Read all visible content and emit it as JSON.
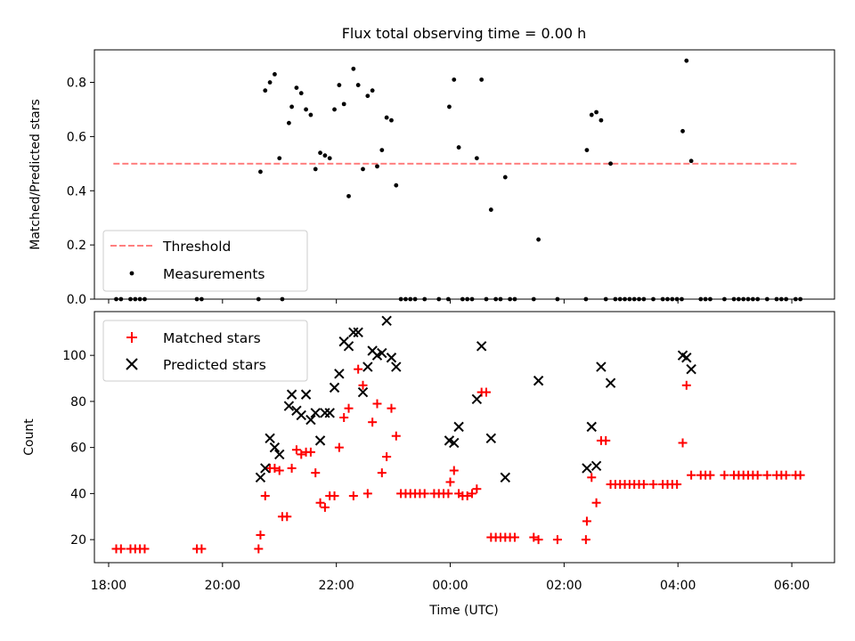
{
  "title": "Flux total observing time = 0.00 h",
  "chart_data": [
    {
      "type": "scatter",
      "ylabel": "Matched/Predicted stars",
      "xlim": [
        "17:45",
        "06:45"
      ],
      "ylim": [
        0,
        0.92
      ],
      "yticks": [
        0.0,
        0.2,
        0.4,
        0.6,
        0.8
      ],
      "yticklabels": [
        "0.0",
        "0.2",
        "0.4",
        "0.6",
        "0.8"
      ],
      "legend_location": "lower-left",
      "threshold": {
        "name": "Threshold",
        "y": 0.5,
        "x_start": "18:05",
        "x_end": "06:05",
        "color": "#ff7f7f",
        "style": "dashed"
      },
      "series": [
        {
          "name": "Measurements",
          "color": "#000000",
          "marker": "dot",
          "points": [
            [
              "18:08",
              0
            ],
            [
              "18:13",
              0
            ],
            [
              "18:23",
              0
            ],
            [
              "18:28",
              0
            ],
            [
              "18:33",
              0
            ],
            [
              "18:38",
              0
            ],
            [
              "19:33",
              0
            ],
            [
              "19:38",
              0
            ],
            [
              "20:38",
              0
            ],
            [
              "20:40",
              0.47
            ],
            [
              "20:45",
              0.77
            ],
            [
              "20:50",
              0.8
            ],
            [
              "20:55",
              0.83
            ],
            [
              "21:00",
              0.52
            ],
            [
              "21:03",
              0
            ],
            [
              "21:10",
              0.65
            ],
            [
              "21:13",
              0.71
            ],
            [
              "21:18",
              0.78
            ],
            [
              "21:23",
              0.76
            ],
            [
              "21:28",
              0.7
            ],
            [
              "21:33",
              0.68
            ],
            [
              "21:38",
              0.48
            ],
            [
              "21:43",
              0.54
            ],
            [
              "21:48",
              0.53
            ],
            [
              "21:53",
              0.52
            ],
            [
              "21:58",
              0.7
            ],
            [
              "22:03",
              0.79
            ],
            [
              "22:08",
              0.72
            ],
            [
              "22:13",
              0.38
            ],
            [
              "22:18",
              0.85
            ],
            [
              "22:23",
              0.79
            ],
            [
              "22:28",
              0.48
            ],
            [
              "22:33",
              0.75
            ],
            [
              "22:38",
              0.77
            ],
            [
              "22:43",
              0.49
            ],
            [
              "22:48",
              0.55
            ],
            [
              "22:53",
              0.67
            ],
            [
              "22:58",
              0.66
            ],
            [
              "23:03",
              0.42
            ],
            [
              "23:08",
              0
            ],
            [
              "23:13",
              0
            ],
            [
              "23:18",
              0
            ],
            [
              "23:23",
              0
            ],
            [
              "23:33",
              0
            ],
            [
              "23:48",
              0
            ],
            [
              "23:58",
              0
            ],
            [
              "23:59",
              0.71
            ],
            [
              "00:04",
              0.81
            ],
            [
              "00:09",
              0.56
            ],
            [
              "00:13",
              0
            ],
            [
              "00:18",
              0
            ],
            [
              "00:23",
              0
            ],
            [
              "00:28",
              0.52
            ],
            [
              "00:33",
              0.81
            ],
            [
              "00:38",
              0
            ],
            [
              "00:43",
              0.33
            ],
            [
              "00:48",
              0
            ],
            [
              "00:53",
              0
            ],
            [
              "00:58",
              0.45
            ],
            [
              "01:03",
              0
            ],
            [
              "01:08",
              0
            ],
            [
              "01:28",
              0
            ],
            [
              "01:33",
              0.22
            ],
            [
              "01:53",
              0
            ],
            [
              "02:23",
              0
            ],
            [
              "02:24",
              0.55
            ],
            [
              "02:29",
              0.68
            ],
            [
              "02:34",
              0.69
            ],
            [
              "02:39",
              0.66
            ],
            [
              "02:44",
              0
            ],
            [
              "02:49",
              0.5
            ],
            [
              "02:54",
              0
            ],
            [
              "02:59",
              0
            ],
            [
              "03:04",
              0
            ],
            [
              "03:09",
              0
            ],
            [
              "03:14",
              0
            ],
            [
              "03:19",
              0
            ],
            [
              "03:24",
              0
            ],
            [
              "03:34",
              0
            ],
            [
              "03:44",
              0
            ],
            [
              "03:49",
              0
            ],
            [
              "03:54",
              0
            ],
            [
              "03:59",
              0
            ],
            [
              "04:04",
              0
            ],
            [
              "04:05",
              0.62
            ],
            [
              "04:09",
              0.88
            ],
            [
              "04:14",
              0.51
            ],
            [
              "04:24",
              0
            ],
            [
              "04:29",
              0
            ],
            [
              "04:34",
              0
            ],
            [
              "04:49",
              0
            ],
            [
              "04:59",
              0
            ],
            [
              "05:04",
              0
            ],
            [
              "05:09",
              0
            ],
            [
              "05:14",
              0
            ],
            [
              "05:19",
              0
            ],
            [
              "05:24",
              0
            ],
            [
              "05:34",
              0
            ],
            [
              "05:44",
              0
            ],
            [
              "05:49",
              0
            ],
            [
              "05:54",
              0
            ],
            [
              "06:04",
              0
            ],
            [
              "06:09",
              0
            ]
          ]
        }
      ]
    },
    {
      "type": "scatter",
      "xlabel": "Time (UTC)",
      "ylabel": "Count",
      "xlim": [
        "17:45",
        "06:45"
      ],
      "ylim": [
        10,
        119
      ],
      "xticks": [
        "18:00",
        "20:00",
        "22:00",
        "00:00",
        "02:00",
        "04:00",
        "06:00"
      ],
      "yticks": [
        20,
        40,
        60,
        80,
        100
      ],
      "yticklabels": [
        "20",
        "40",
        "60",
        "80",
        "100"
      ],
      "legend_location": "upper-left",
      "series": [
        {
          "name": "Matched stars",
          "color": "#ff0000",
          "marker": "plus",
          "points": [
            [
              "18:08",
              16
            ],
            [
              "18:13",
              16
            ],
            [
              "18:23",
              16
            ],
            [
              "18:28",
              16
            ],
            [
              "18:33",
              16
            ],
            [
              "18:38",
              16
            ],
            [
              "19:33",
              16
            ],
            [
              "19:38",
              16
            ],
            [
              "20:38",
              16
            ],
            [
              "20:40",
              22
            ],
            [
              "20:45",
              39
            ],
            [
              "20:50",
              51
            ],
            [
              "20:55",
              51
            ],
            [
              "21:00",
              50
            ],
            [
              "21:03",
              30
            ],
            [
              "21:08",
              30
            ],
            [
              "21:13",
              51
            ],
            [
              "21:18",
              59
            ],
            [
              "21:23",
              57
            ],
            [
              "21:28",
              58
            ],
            [
              "21:33",
              58
            ],
            [
              "21:38",
              49
            ],
            [
              "21:43",
              36
            ],
            [
              "21:48",
              34
            ],
            [
              "21:53",
              39
            ],
            [
              "21:58",
              39
            ],
            [
              "22:03",
              60
            ],
            [
              "22:08",
              73
            ],
            [
              "22:13",
              77
            ],
            [
              "22:18",
              39
            ],
            [
              "22:23",
              94
            ],
            [
              "22:28",
              87
            ],
            [
              "22:33",
              40
            ],
            [
              "22:38",
              71
            ],
            [
              "22:43",
              79
            ],
            [
              "22:48",
              49
            ],
            [
              "22:53",
              56
            ],
            [
              "22:58",
              77
            ],
            [
              "23:03",
              65
            ],
            [
              "23:08",
              40
            ],
            [
              "23:13",
              40
            ],
            [
              "23:18",
              40
            ],
            [
              "23:23",
              40
            ],
            [
              "23:28",
              40
            ],
            [
              "23:33",
              40
            ],
            [
              "23:43",
              40
            ],
            [
              "23:48",
              40
            ],
            [
              "23:53",
              40
            ],
            [
              "23:58",
              40
            ],
            [
              "00:00",
              45
            ],
            [
              "00:04",
              50
            ],
            [
              "00:09",
              40
            ],
            [
              "00:13",
              39
            ],
            [
              "00:18",
              39
            ],
            [
              "00:23",
              40
            ],
            [
              "00:28",
              42
            ],
            [
              "00:33",
              84
            ],
            [
              "00:38",
              84
            ],
            [
              "00:43",
              21
            ],
            [
              "00:48",
              21
            ],
            [
              "00:53",
              21
            ],
            [
              "00:58",
              21
            ],
            [
              "01:03",
              21
            ],
            [
              "01:08",
              21
            ],
            [
              "01:28",
              21
            ],
            [
              "01:33",
              20
            ],
            [
              "01:53",
              20
            ],
            [
              "02:23",
              20
            ],
            [
              "02:24",
              28
            ],
            [
              "02:29",
              47
            ],
            [
              "02:34",
              36
            ],
            [
              "02:39",
              63
            ],
            [
              "02:44",
              63
            ],
            [
              "02:49",
              44
            ],
            [
              "02:54",
              44
            ],
            [
              "02:59",
              44
            ],
            [
              "03:04",
              44
            ],
            [
              "03:09",
              44
            ],
            [
              "03:14",
              44
            ],
            [
              "03:19",
              44
            ],
            [
              "03:24",
              44
            ],
            [
              "03:34",
              44
            ],
            [
              "03:44",
              44
            ],
            [
              "03:49",
              44
            ],
            [
              "03:54",
              44
            ],
            [
              "03:59",
              44
            ],
            [
              "04:05",
              62
            ],
            [
              "04:09",
              87
            ],
            [
              "04:14",
              48
            ],
            [
              "04:24",
              48
            ],
            [
              "04:29",
              48
            ],
            [
              "04:34",
              48
            ],
            [
              "04:49",
              48
            ],
            [
              "04:59",
              48
            ],
            [
              "05:04",
              48
            ],
            [
              "05:09",
              48
            ],
            [
              "05:14",
              48
            ],
            [
              "05:19",
              48
            ],
            [
              "05:24",
              48
            ],
            [
              "05:34",
              48
            ],
            [
              "05:44",
              48
            ],
            [
              "05:49",
              48
            ],
            [
              "05:54",
              48
            ],
            [
              "06:04",
              48
            ],
            [
              "06:09",
              48
            ]
          ]
        },
        {
          "name": "Predicted stars",
          "color": "#000000",
          "marker": "x",
          "points": [
            [
              "20:40",
              47
            ],
            [
              "20:45",
              51
            ],
            [
              "20:50",
              64
            ],
            [
              "20:55",
              60
            ],
            [
              "21:00",
              57
            ],
            [
              "21:10",
              78
            ],
            [
              "21:13",
              83
            ],
            [
              "21:18",
              76
            ],
            [
              "21:23",
              74
            ],
            [
              "21:28",
              83
            ],
            [
              "21:33",
              72
            ],
            [
              "21:38",
              75
            ],
            [
              "21:43",
              63
            ],
            [
              "21:48",
              75
            ],
            [
              "21:53",
              75
            ],
            [
              "21:58",
              86
            ],
            [
              "22:03",
              92
            ],
            [
              "22:08",
              106
            ],
            [
              "22:13",
              104
            ],
            [
              "22:18",
              110
            ],
            [
              "22:23",
              110
            ],
            [
              "22:28",
              84
            ],
            [
              "22:33",
              95
            ],
            [
              "22:38",
              102
            ],
            [
              "22:43",
              100
            ],
            [
              "22:48",
              101
            ],
            [
              "22:53",
              115
            ],
            [
              "22:58",
              99
            ],
            [
              "23:03",
              95
            ],
            [
              "23:59",
              63
            ],
            [
              "00:04",
              62
            ],
            [
              "00:09",
              69
            ],
            [
              "00:28",
              81
            ],
            [
              "00:33",
              104
            ],
            [
              "00:43",
              64
            ],
            [
              "00:58",
              47
            ],
            [
              "01:33",
              89
            ],
            [
              "02:24",
              51
            ],
            [
              "02:29",
              69
            ],
            [
              "02:34",
              52
            ],
            [
              "02:39",
              95
            ],
            [
              "02:49",
              88
            ],
            [
              "04:05",
              100
            ],
            [
              "04:09",
              99
            ],
            [
              "04:14",
              94
            ]
          ]
        }
      ]
    }
  ]
}
